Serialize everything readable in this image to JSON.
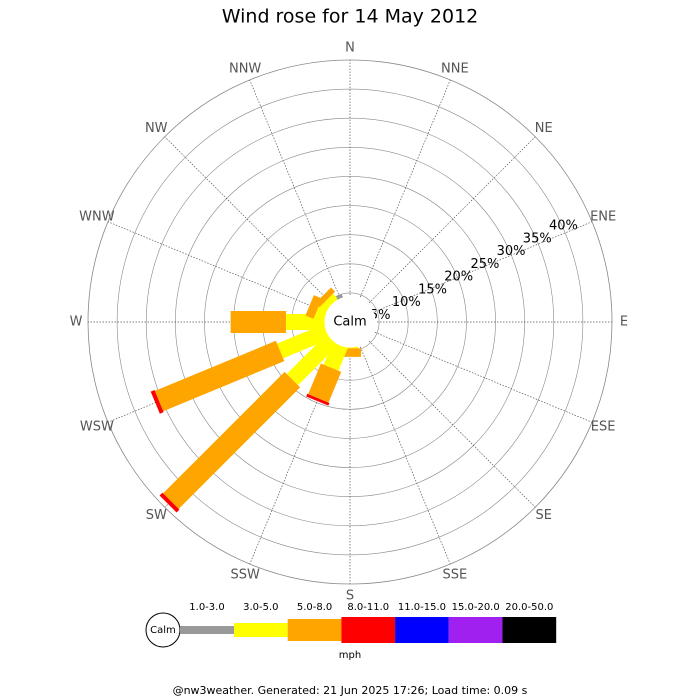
{
  "chart_data": {
    "type": "windrose",
    "title": "Wind rose for 14 May 2012",
    "directions": [
      "N",
      "NNE",
      "NE",
      "ENE",
      "E",
      "ESE",
      "SE",
      "SSE",
      "S",
      "SSW",
      "SW",
      "WSW",
      "W",
      "WNW",
      "NW",
      "NNW"
    ],
    "rlim": [
      0,
      45
    ],
    "rticks": [
      {
        "value": 5,
        "label": "5%"
      },
      {
        "value": 10,
        "label": "10%"
      },
      {
        "value": 15,
        "label": "15%"
      },
      {
        "value": 20,
        "label": "20%"
      },
      {
        "value": 25,
        "label": "25%"
      },
      {
        "value": 30,
        "label": "30%"
      },
      {
        "value": 35,
        "label": "35%"
      },
      {
        "value": 40,
        "label": "40%"
      }
    ],
    "calm_label": "Calm",
    "legend_unit": "mph",
    "series": [
      {
        "name": "1.0-3.0",
        "color": "#999999",
        "values": [
          0,
          0,
          0,
          0,
          0,
          0,
          0,
          0,
          0,
          0,
          0,
          0,
          0,
          0,
          0,
          5
        ]
      },
      {
        "name": "3.0-5.0",
        "color": "#ffff00",
        "values": [
          0,
          0,
          0,
          0,
          0,
          0,
          0,
          0,
          4.5,
          8.5,
          14,
          13,
          11,
          6,
          5.5,
          0
        ]
      },
      {
        "name": "5.0-8.0",
        "color": "#ffa500",
        "values": [
          0,
          0,
          0,
          0,
          0,
          0,
          0,
          0,
          1.5,
          5.7,
          29.5,
          22.5,
          9.5,
          1.5,
          1,
          0
        ]
      },
      {
        "name": "8.0-11.0",
        "color": "#ff0000",
        "values": [
          0,
          0,
          0,
          0,
          0,
          0,
          0,
          0,
          0,
          0.5,
          0.7,
          0.7,
          0,
          0,
          0,
          0
        ]
      },
      {
        "name": "11.0-15.0",
        "color": "#0000ff",
        "values": [
          0,
          0,
          0,
          0,
          0,
          0,
          0,
          0,
          0,
          0,
          0,
          0,
          0,
          0,
          0,
          0
        ]
      },
      {
        "name": "15.0-20.0",
        "color": "#a020f0",
        "values": [
          0,
          0,
          0,
          0,
          0,
          0,
          0,
          0,
          0,
          0,
          0,
          0,
          0,
          0,
          0,
          0
        ]
      },
      {
        "name": "20.0-50.0",
        "color": "#000000",
        "values": [
          0,
          0,
          0,
          0,
          0,
          0,
          0,
          0,
          0,
          0,
          0,
          0,
          0,
          0,
          0,
          0
        ]
      }
    ]
  },
  "footer": "@nw3weather. Generated: 21 Jun 2025 17:26; Load time: 0.09 s"
}
